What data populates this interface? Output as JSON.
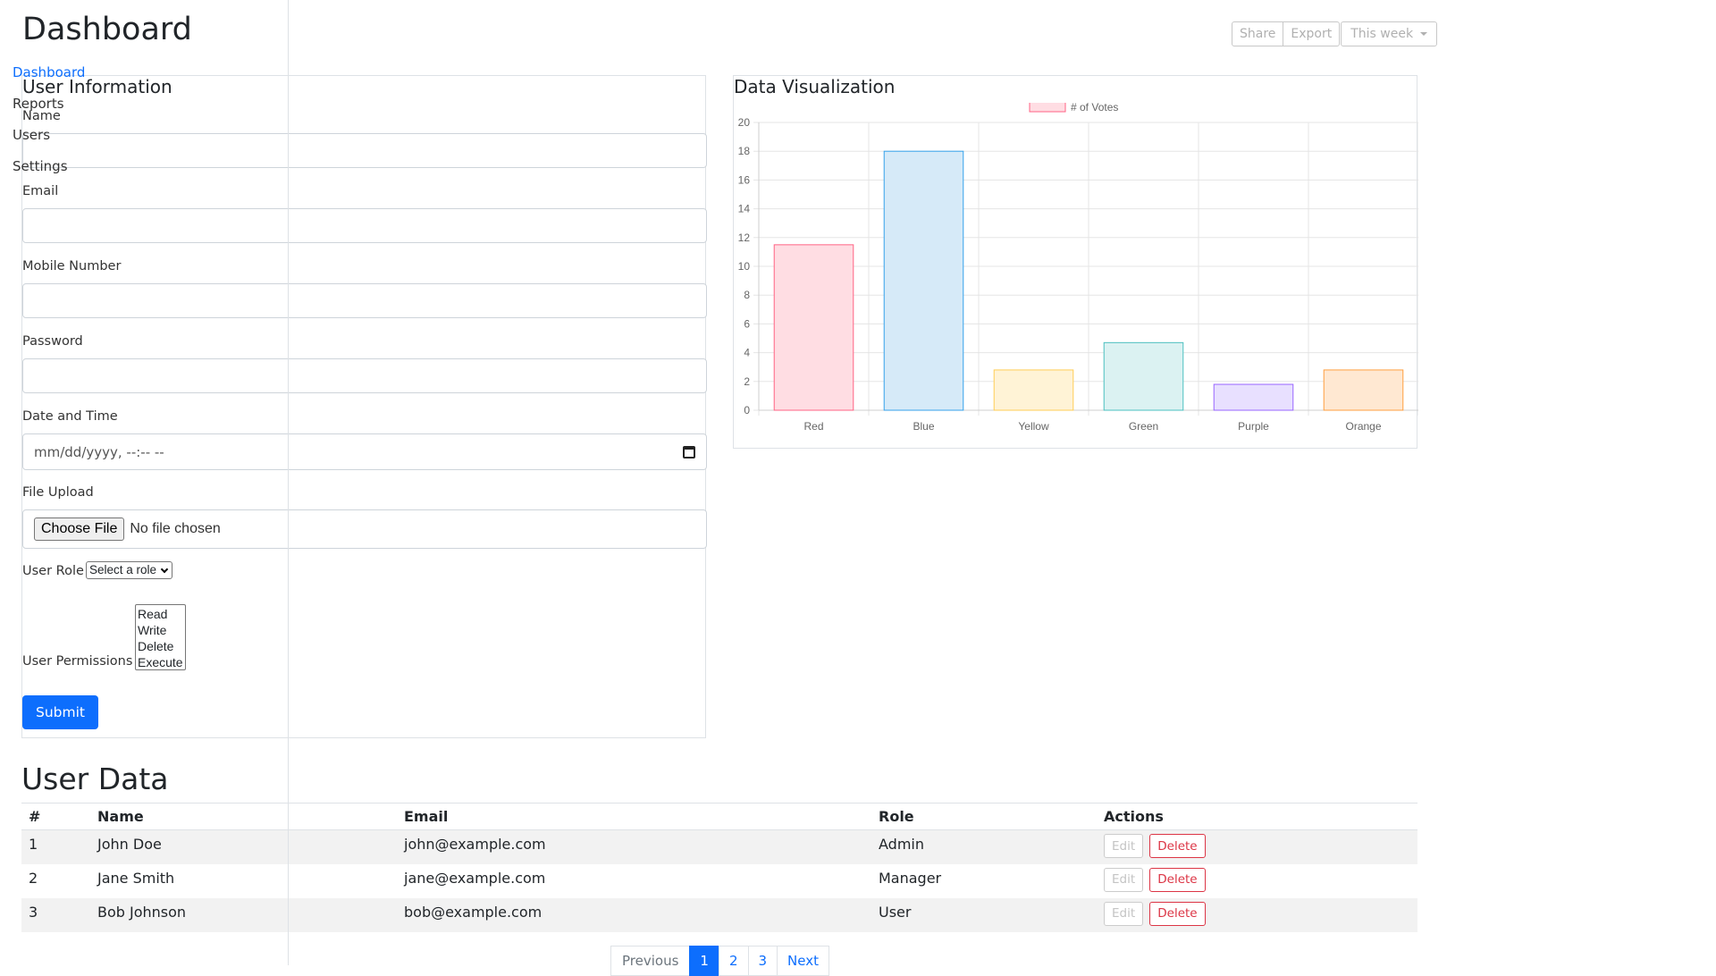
{
  "page_title": "Dashboard",
  "sidebar": {
    "items": [
      {
        "label": "Dashboard",
        "active": true
      },
      {
        "label": "Reports"
      },
      {
        "label": "Users"
      },
      {
        "label": "Settings"
      }
    ]
  },
  "toolbar": {
    "share_label": "Share",
    "export_label": "Export",
    "period_label": "This week"
  },
  "form": {
    "title": "User Information",
    "name_label": "Name",
    "email_label": "Email",
    "mobile_label": "Mobile Number",
    "password_label": "Password",
    "datetime_label": "Date and Time",
    "datetime_placeholder": "mm/dd/yyyy, --:-- --",
    "file_label": "File Upload",
    "file_button": "Choose File",
    "file_status": "No file chosen",
    "role_label": "User Role",
    "role_selected": "Select a role",
    "permissions_label": "User Permissions",
    "permissions_options": [
      "Read",
      "Write",
      "Delete",
      "Execute"
    ],
    "submit_label": "Submit"
  },
  "chart": {
    "title": "Data Visualization",
    "bar_fills": [
      "#ffdde3",
      "#d6eaf8",
      "#fff3d6",
      "#dbf2f2",
      "#e8e0ff",
      "#ffe8d2"
    ],
    "bar_strokes": [
      "#ff6384",
      "#36a2eb",
      "#ffce56",
      "#4bc0c0",
      "#9966ff",
      "#ff9f40"
    ]
  },
  "chart_data": {
    "type": "bar",
    "categories": [
      "Red",
      "Blue",
      "Yellow",
      "Green",
      "Purple",
      "Orange"
    ],
    "series": [
      {
        "name": "# of Votes",
        "values": [
          11.5,
          18,
          2.8,
          4.7,
          1.8,
          2.8
        ]
      }
    ],
    "title": "",
    "xlabel": "",
    "ylabel": "",
    "ylim": [
      0,
      20
    ],
    "yticks": [
      0,
      2,
      4,
      6,
      8,
      10,
      12,
      14,
      16,
      18,
      20
    ],
    "grid": true,
    "legend": "top"
  },
  "table": {
    "title": "User Data",
    "headers": [
      "#",
      "Name",
      "Email",
      "Role",
      "Actions"
    ],
    "rows": [
      {
        "num": "1",
        "name": "John Doe",
        "email": "john@example.com",
        "role": "Admin"
      },
      {
        "num": "2",
        "name": "Jane Smith",
        "email": "jane@example.com",
        "role": "Manager"
      },
      {
        "num": "3",
        "name": "Bob Johnson",
        "email": "bob@example.com",
        "role": "User"
      }
    ],
    "edit_label": "Edit",
    "delete_label": "Delete"
  },
  "pagination": {
    "previous": "Previous",
    "pages": [
      "1",
      "2",
      "3"
    ],
    "active_page": "1",
    "next": "Next"
  }
}
